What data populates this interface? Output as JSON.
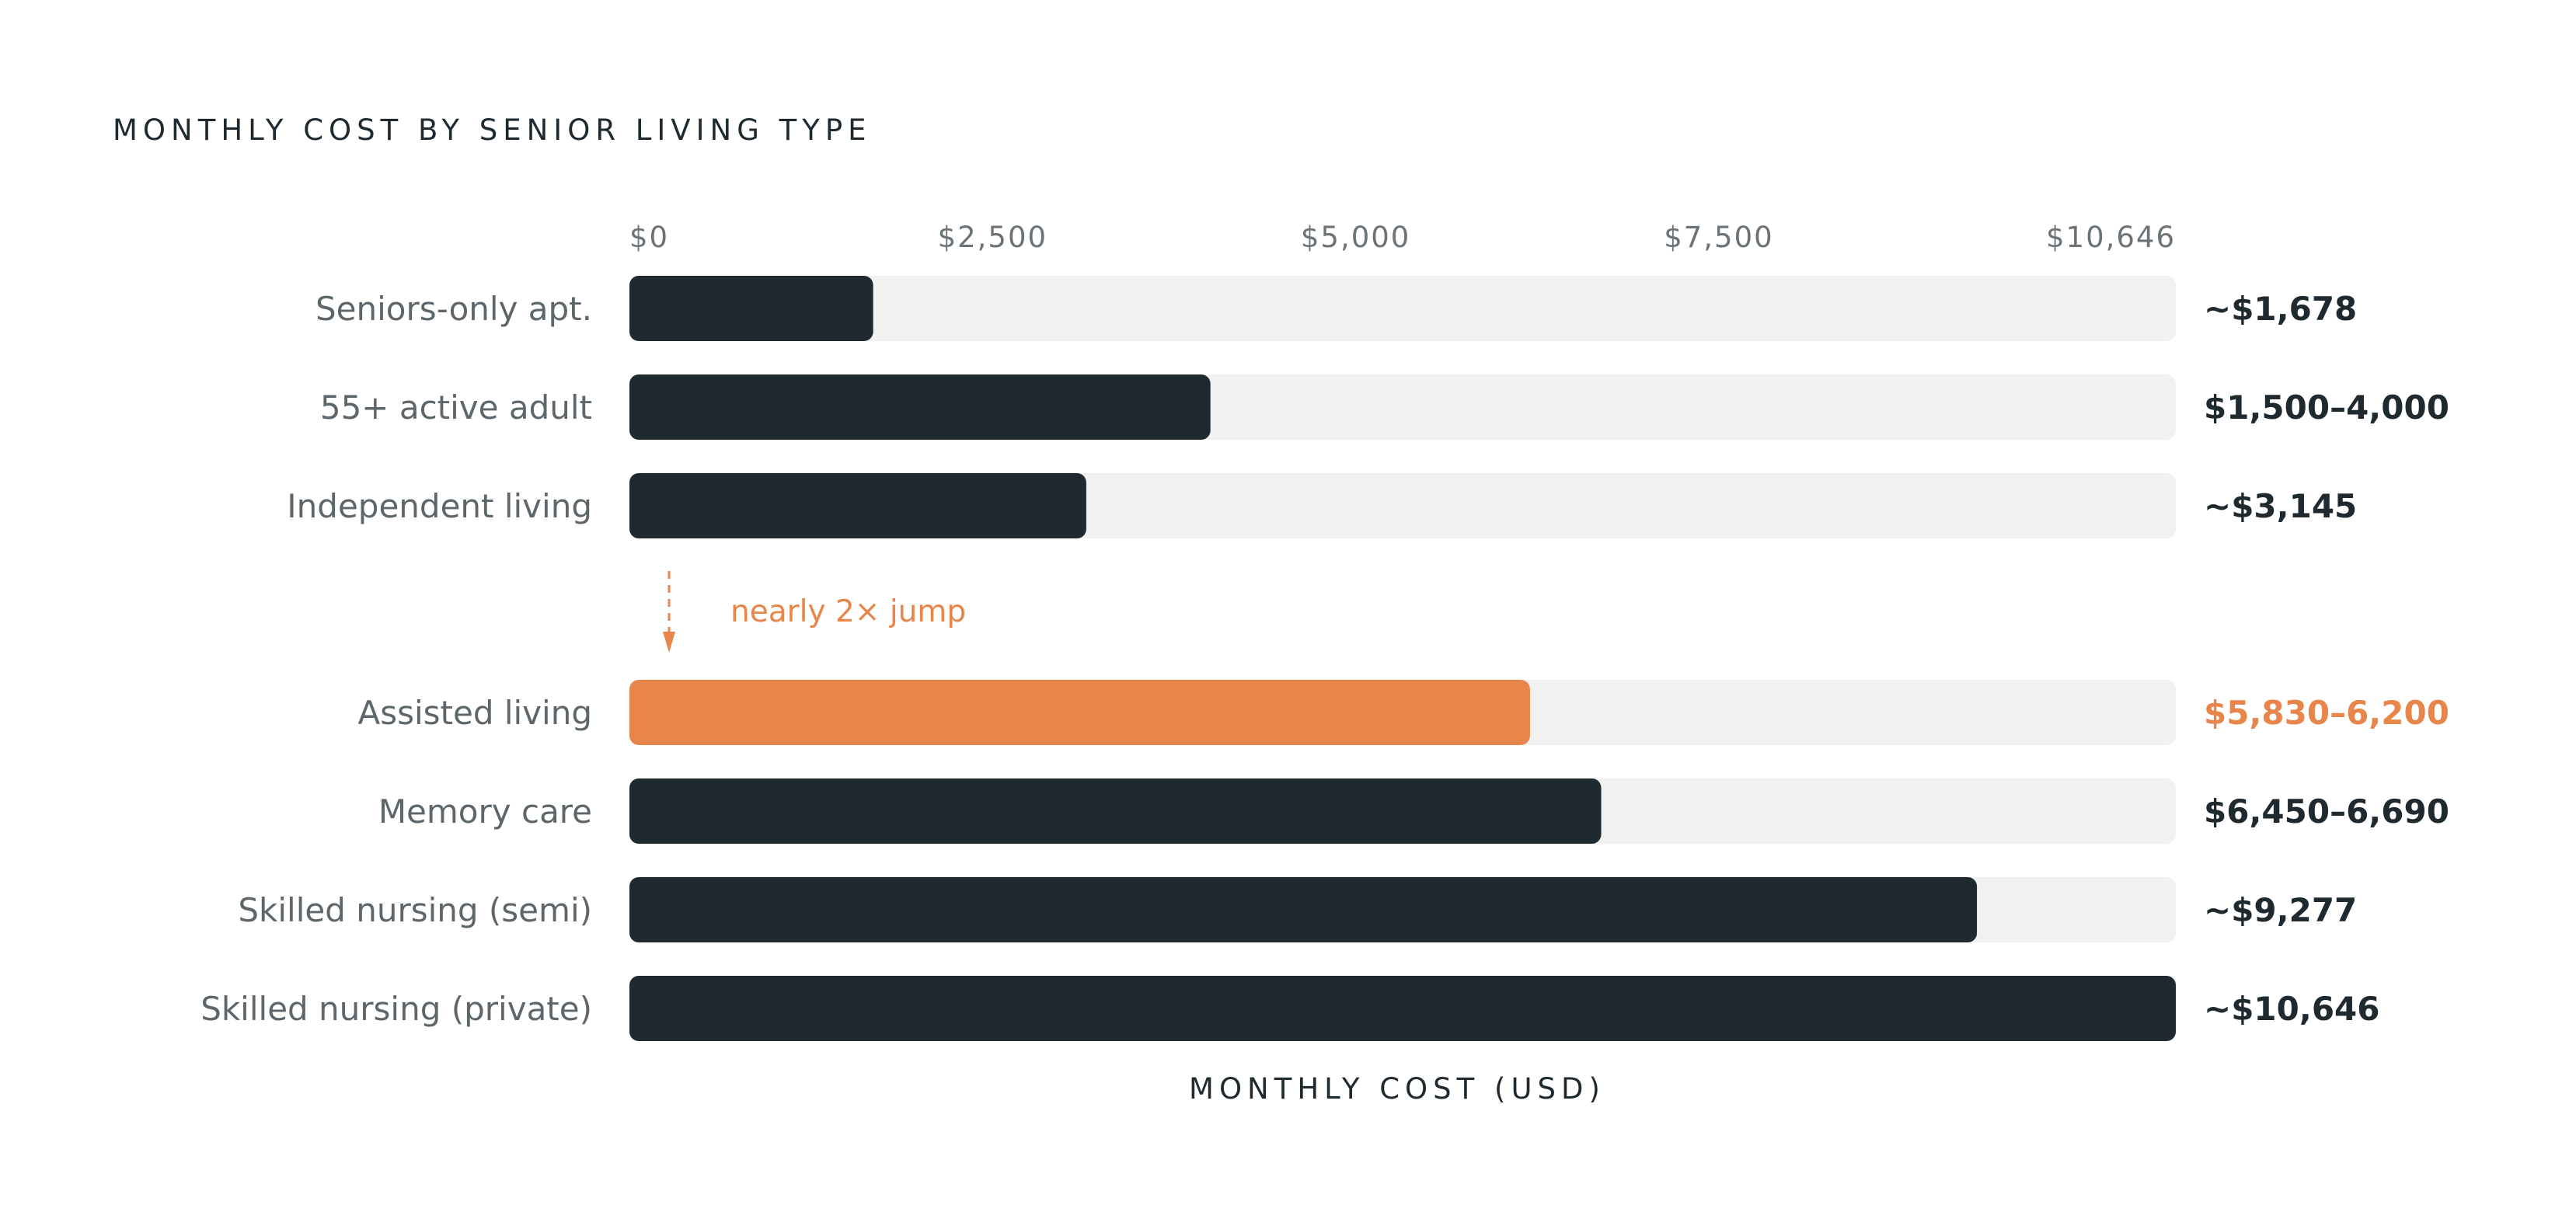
{
  "colors": {
    "bar": "#1e2a30",
    "highlight": "#e8854a",
    "track": "#f0f1f0",
    "label": "#5d666b"
  },
  "chart_data": {
    "type": "bar",
    "orientation": "horizontal",
    "title": "MONTHLY COST BY SENIOR LIVING TYPE",
    "xlabel": "MONTHLY COST (USD)",
    "ylabel": "",
    "xlim": [
      0,
      10646
    ],
    "ticks": [
      {
        "value": 0,
        "label": "$0"
      },
      {
        "value": 2500,
        "label": "$2,500"
      },
      {
        "value": 5000,
        "label": "$5,000"
      },
      {
        "value": 7500,
        "label": "$7,500"
      },
      {
        "value": 10646,
        "label": "$10,646"
      }
    ],
    "grid": false,
    "categories": [
      "Seniors-only apt.",
      "55+ active adult",
      "Independent living",
      "Assisted living",
      "Memory care",
      "Skilled nursing (semi)",
      "Skilled nursing (private)"
    ],
    "values": [
      1678,
      4000,
      3145,
      6200,
      6690,
      9277,
      10646
    ],
    "value_labels": [
      "~$1,678",
      "$1,500–4,000",
      "~$3,145",
      "$5,830–6,200",
      "$6,450–6,690",
      "~$9,277",
      "~$10,646"
    ],
    "highlight_index": 3,
    "annotation": {
      "text": "nearly 2× jump",
      "between": [
        2,
        3
      ]
    }
  }
}
